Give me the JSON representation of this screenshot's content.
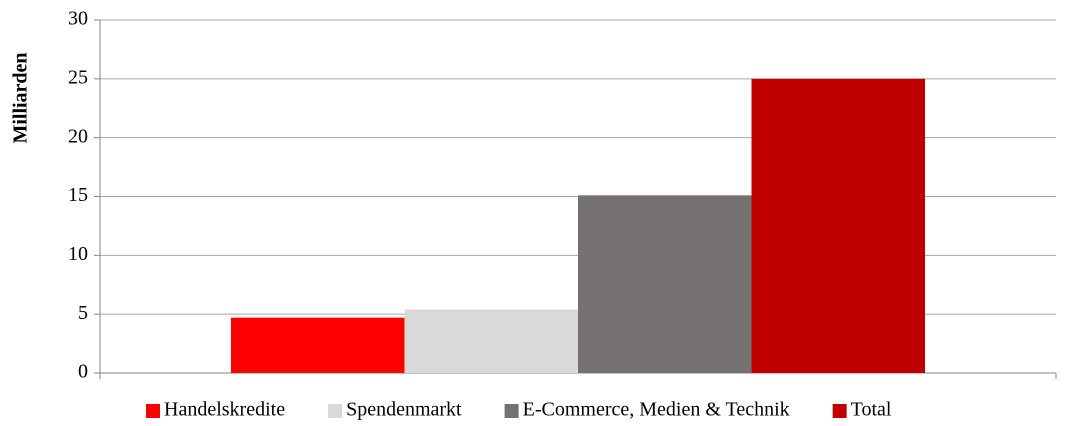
{
  "chart_data": {
    "type": "bar",
    "y_label": "Milliarden",
    "categories": [
      null
    ],
    "series": [
      {
        "name": "Handelskredite",
        "color": "#ff0000",
        "values": [
          4.7
        ]
      },
      {
        "name": "Spendenmarkt",
        "color": "#d9d9d9",
        "values": [
          5.4
        ]
      },
      {
        "name": "E-Commerce, Medien & Technik",
        "color": "#767171",
        "values": [
          15.1
        ]
      },
      {
        "name": "Total",
        "color": "#c00000",
        "values": [
          25.0
        ]
      }
    ],
    "ylim": [
      0,
      30
    ],
    "yticks": [
      0,
      5,
      10,
      15,
      20,
      25,
      30
    ],
    "grid": true,
    "legend": "bottom"
  }
}
